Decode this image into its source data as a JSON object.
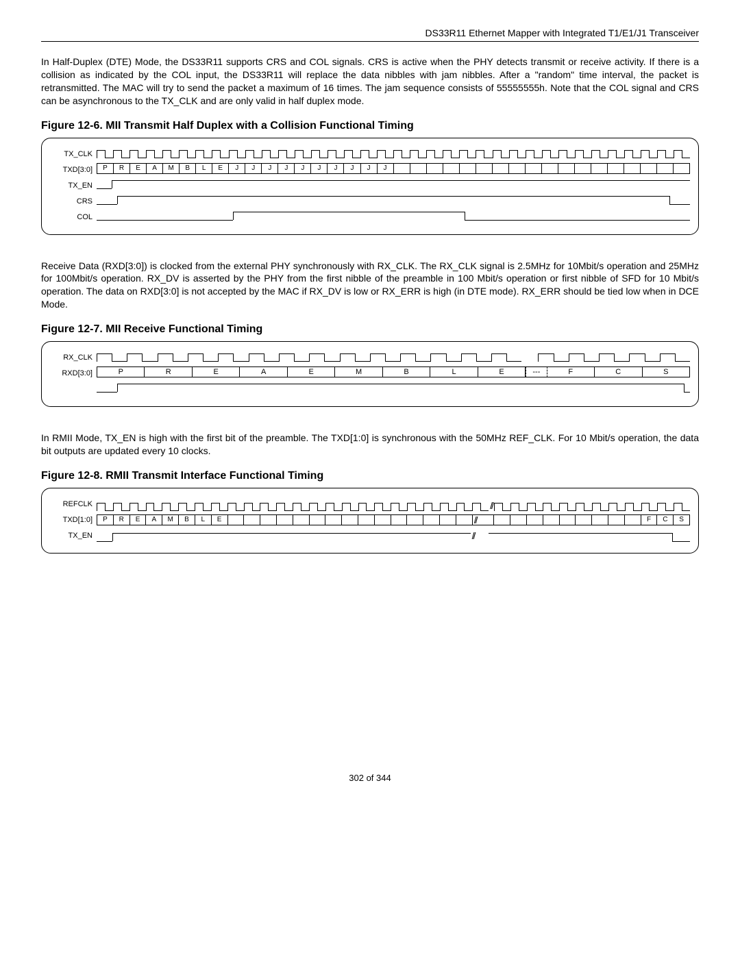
{
  "header": "DS33R11 Ethernet Mapper with Integrated T1/E1/J1 Transceiver",
  "para1": "In Half-Duplex (DTE) Mode, the DS33R11 supports CRS and COL signals. CRS is active when the PHY detects transmit or receive activity. If there is a collision as indicated by the COL input, the DS33R11 will replace the data nibbles with jam nibbles. After a \"random\" time interval, the packet is retransmitted. The MAC will try to send the packet a maximum of 16 times. The jam sequence consists of 55555555h. Note that the COL signal and CRS can be asynchronous to the TX_CLK and are only valid in half duplex mode.",
  "fig6_title": "Figure 12-6. MII Transmit Half Duplex with a Collision Functional Timing",
  "fig6": {
    "signals": {
      "txclk": "TX_CLK",
      "txd": "TXD[3:0]",
      "txen": "TX_EN",
      "crs": "CRS",
      "col": "COL"
    },
    "clk_cycles": 36,
    "bus_cells": [
      "P",
      "R",
      "E",
      "A",
      "M",
      "B",
      "L",
      "E",
      "J",
      "J",
      "J",
      "J",
      "J",
      "J",
      "J",
      "J",
      "J",
      "J",
      "",
      "",
      "",
      "",
      "",
      "",
      "",
      "",
      "",
      "",
      "",
      "",
      "",
      "",
      "",
      "",
      "",
      ""
    ],
    "txen_rise_pct": 2.5,
    "txen_fall_pct": 100,
    "crs_rise_pct": 3.5,
    "crs_fall_pct": 96.5,
    "col_rise_pct": 23,
    "col_fall_pct": 62
  },
  "para2": "Receive Data (RXD[3:0]) is clocked from the external PHY synchronously with RX_CLK. The RX_CLK signal is 2.5MHz for 10Mbit/s operation and 25MHz for 100Mbit/s operation. RX_DV is asserted by the PHY from the first nibble of the preamble in 100 Mbit/s operation or first nibble of SFD for 10 Mbit/s operation. The data on RXD[3:0] is not accepted by the MAC if RX_DV is low or RX_ERR is high (in DTE mode). RX_ERR should be tied low when in DCE Mode.",
  "fig7_title": "Figure 12-7. MII Receive Functional Timing",
  "fig7": {
    "signals": {
      "rxclk": "RX_CLK",
      "rxd": "RXD[3:0]",
      "rxdv": ""
    },
    "clk_left_cycles": 14,
    "clk_right_cycles": 5,
    "bus_cells_left": [
      "P",
      "R",
      "E",
      "A",
      "E",
      "M",
      "B",
      "L",
      "E"
    ],
    "gap_label": "---",
    "bus_cells_right": [
      "F",
      "C",
      "S"
    ],
    "rxdv_rise_pct": 3.5,
    "rxdv_fall_pct": 99
  },
  "para3": "In RMII Mode, TX_EN is high with the first bit of the preamble. The TXD[1:0] is synchronous with the 50MHz REF_CLK. For 10 Mbit/s operation, the data bit outputs are updated every 10 clocks.",
  "fig8_title": "Figure 12-8. RMII Transmit Interface Functional Timing",
  "fig8": {
    "signals": {
      "refclk": "REFCLK",
      "txd": "TXD[1:0]",
      "txen": "TX_EN"
    },
    "clk_left_cycles": 24,
    "clk_right_cycles": 12,
    "bus_cells": [
      "P",
      "R",
      "E",
      "A",
      "M",
      "B",
      "L",
      "E",
      "",
      "",
      "",
      "",
      "",
      "",
      "",
      "",
      "",
      "",
      "",
      "",
      "",
      "",
      "",
      "",
      "",
      "",
      "",
      "",
      "",
      "",
      "",
      "",
      "",
      "F",
      "C",
      "S"
    ],
    "break_at_pct": 64,
    "txen_rise_pct": 2.7,
    "txen_fall_pct": 97
  },
  "footer": "302 of 344"
}
